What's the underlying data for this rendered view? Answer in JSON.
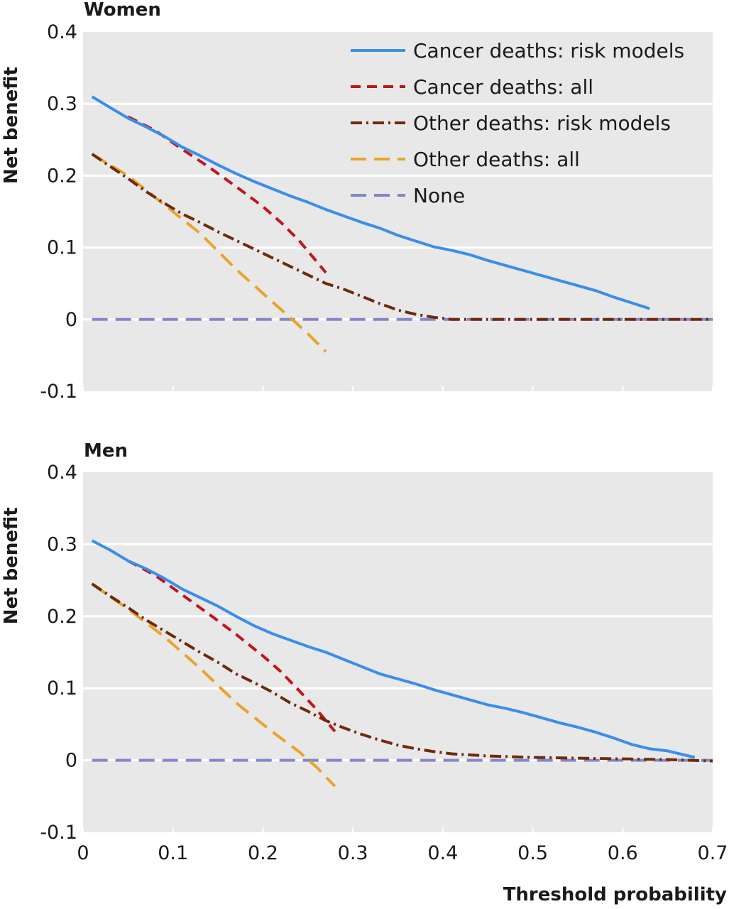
{
  "chart_data": [
    {
      "type": "line",
      "title": "Women",
      "xlabel": "",
      "ylabel": "Net benefit",
      "xlim": [
        0,
        0.7
      ],
      "ylim": [
        -0.1,
        0.4
      ],
      "x_ticks": [
        0,
        0.1,
        0.2,
        0.3,
        0.4,
        0.5,
        0.6,
        0.7
      ],
      "x_tick_labels": [
        "",
        "",
        "",
        "",
        "",
        "",
        "",
        ""
      ],
      "y_ticks": [
        -0.1,
        0,
        0.1,
        0.2,
        0.3,
        0.4
      ],
      "y_tick_labels": [
        "-0.1",
        "0",
        "0.1",
        "0.2",
        "0.3",
        "0.4"
      ],
      "grid": "horizontal",
      "background": "#e8e8e8",
      "legend_position": "top-right",
      "series": [
        {
          "name": "Cancer deaths: risk models",
          "color": "#3b8ee8",
          "style": "solid",
          "points": [
            [
              0.01,
              0.31
            ],
            [
              0.03,
              0.295
            ],
            [
              0.05,
              0.28
            ],
            [
              0.07,
              0.268
            ],
            [
              0.09,
              0.255
            ],
            [
              0.11,
              0.24
            ],
            [
              0.13,
              0.228
            ],
            [
              0.15,
              0.215
            ],
            [
              0.17,
              0.203
            ],
            [
              0.19,
              0.192
            ],
            [
              0.21,
              0.182
            ],
            [
              0.23,
              0.172
            ],
            [
              0.25,
              0.163
            ],
            [
              0.27,
              0.153
            ],
            [
              0.29,
              0.144
            ],
            [
              0.31,
              0.135
            ],
            [
              0.33,
              0.127
            ],
            [
              0.35,
              0.117
            ],
            [
              0.37,
              0.109
            ],
            [
              0.39,
              0.101
            ],
            [
              0.41,
              0.096
            ],
            [
              0.43,
              0.09
            ],
            [
              0.45,
              0.082
            ],
            [
              0.47,
              0.075
            ],
            [
              0.49,
              0.068
            ],
            [
              0.51,
              0.061
            ],
            [
              0.53,
              0.054
            ],
            [
              0.55,
              0.047
            ],
            [
              0.57,
              0.04
            ],
            [
              0.59,
              0.031
            ],
            [
              0.61,
              0.023
            ],
            [
              0.63,
              0.015
            ]
          ]
        },
        {
          "name": "Cancer deaths: all",
          "color": "#c0151b",
          "style": "dashed",
          "points": [
            [
              0.05,
              0.282
            ],
            [
              0.08,
              0.263
            ],
            [
              0.11,
              0.237
            ],
            [
              0.14,
              0.212
            ],
            [
              0.17,
              0.185
            ],
            [
              0.2,
              0.157
            ],
            [
              0.22,
              0.135
            ],
            [
              0.24,
              0.11
            ],
            [
              0.26,
              0.08
            ],
            [
              0.27,
              0.065
            ]
          ]
        },
        {
          "name": "Other deaths: risk models",
          "color": "#6e2a0c",
          "style": "dashdot",
          "points": [
            [
              0.01,
              0.23
            ],
            [
              0.03,
              0.213
            ],
            [
              0.05,
              0.196
            ],
            [
              0.07,
              0.178
            ],
            [
              0.09,
              0.162
            ],
            [
              0.11,
              0.147
            ],
            [
              0.13,
              0.135
            ],
            [
              0.15,
              0.122
            ],
            [
              0.17,
              0.11
            ],
            [
              0.19,
              0.098
            ],
            [
              0.21,
              0.086
            ],
            [
              0.23,
              0.074
            ],
            [
              0.25,
              0.062
            ],
            [
              0.27,
              0.05
            ],
            [
              0.29,
              0.042
            ],
            [
              0.31,
              0.032
            ],
            [
              0.33,
              0.022
            ],
            [
              0.35,
              0.013
            ],
            [
              0.37,
              0.007
            ],
            [
              0.39,
              0.003
            ],
            [
              0.41,
              0.0
            ],
            [
              0.5,
              0.0
            ],
            [
              0.6,
              0.0
            ],
            [
              0.7,
              0.0
            ]
          ]
        },
        {
          "name": "Other deaths: all",
          "color": "#e8a42a",
          "style": "longdash",
          "points": [
            [
              0.01,
              0.23
            ],
            [
              0.05,
              0.2
            ],
            [
              0.09,
              0.16
            ],
            [
              0.13,
              0.12
            ],
            [
              0.17,
              0.07
            ],
            [
              0.21,
              0.025
            ],
            [
              0.23,
              0.003
            ],
            [
              0.25,
              -0.02
            ],
            [
              0.27,
              -0.045
            ]
          ]
        },
        {
          "name": "None",
          "color": "#8585c8",
          "style": "longdash",
          "points": [
            [
              0.01,
              0.0
            ],
            [
              0.7,
              0.0
            ]
          ]
        }
      ]
    },
    {
      "type": "line",
      "title": "Men",
      "xlabel": "Threshold probability",
      "ylabel": "Net benefit",
      "xlim": [
        0,
        0.7
      ],
      "ylim": [
        -0.1,
        0.4
      ],
      "x_ticks": [
        0,
        0.1,
        0.2,
        0.3,
        0.4,
        0.5,
        0.6,
        0.7
      ],
      "x_tick_labels": [
        "0",
        "0.1",
        "0.2",
        "0.3",
        "0.4",
        "0.5",
        "0.6",
        "0.7"
      ],
      "y_ticks": [
        -0.1,
        0,
        0.1,
        0.2,
        0.3,
        0.4
      ],
      "y_tick_labels": [
        "-0.1",
        "0",
        "0.1",
        "0.2",
        "0.3",
        "0.4"
      ],
      "grid": "horizontal",
      "background": "#e8e8e8",
      "series": [
        {
          "name": "Cancer deaths: risk models",
          "color": "#3b8ee8",
          "style": "solid",
          "points": [
            [
              0.01,
              0.305
            ],
            [
              0.03,
              0.292
            ],
            [
              0.05,
              0.277
            ],
            [
              0.07,
              0.266
            ],
            [
              0.09,
              0.253
            ],
            [
              0.11,
              0.238
            ],
            [
              0.13,
              0.226
            ],
            [
              0.15,
              0.214
            ],
            [
              0.17,
              0.2
            ],
            [
              0.19,
              0.187
            ],
            [
              0.21,
              0.176
            ],
            [
              0.23,
              0.167
            ],
            [
              0.25,
              0.158
            ],
            [
              0.27,
              0.15
            ],
            [
              0.29,
              0.14
            ],
            [
              0.31,
              0.13
            ],
            [
              0.33,
              0.12
            ],
            [
              0.35,
              0.113
            ],
            [
              0.37,
              0.106
            ],
            [
              0.39,
              0.098
            ],
            [
              0.41,
              0.091
            ],
            [
              0.43,
              0.084
            ],
            [
              0.45,
              0.077
            ],
            [
              0.47,
              0.072
            ],
            [
              0.49,
              0.066
            ],
            [
              0.51,
              0.059
            ],
            [
              0.53,
              0.052
            ],
            [
              0.55,
              0.046
            ],
            [
              0.57,
              0.039
            ],
            [
              0.59,
              0.031
            ],
            [
              0.61,
              0.022
            ],
            [
              0.63,
              0.016
            ],
            [
              0.65,
              0.013
            ],
            [
              0.67,
              0.007
            ],
            [
              0.68,
              0.004
            ]
          ]
        },
        {
          "name": "Cancer deaths: all",
          "color": "#c0151b",
          "style": "dashed",
          "points": [
            [
              0.05,
              0.277
            ],
            [
              0.08,
              0.257
            ],
            [
              0.11,
              0.23
            ],
            [
              0.14,
              0.203
            ],
            [
              0.17,
              0.175
            ],
            [
              0.2,
              0.145
            ],
            [
              0.22,
              0.123
            ],
            [
              0.24,
              0.097
            ],
            [
              0.26,
              0.07
            ],
            [
              0.28,
              0.04
            ]
          ]
        },
        {
          "name": "Other deaths: risk models",
          "color": "#6e2a0c",
          "style": "dashdot",
          "points": [
            [
              0.01,
              0.245
            ],
            [
              0.03,
              0.228
            ],
            [
              0.05,
              0.212
            ],
            [
              0.07,
              0.195
            ],
            [
              0.09,
              0.18
            ],
            [
              0.11,
              0.165
            ],
            [
              0.13,
              0.15
            ],
            [
              0.15,
              0.136
            ],
            [
              0.17,
              0.12
            ],
            [
              0.19,
              0.108
            ],
            [
              0.21,
              0.095
            ],
            [
              0.23,
              0.08
            ],
            [
              0.25,
              0.068
            ],
            [
              0.27,
              0.055
            ],
            [
              0.29,
              0.045
            ],
            [
              0.31,
              0.036
            ],
            [
              0.33,
              0.028
            ],
            [
              0.35,
              0.021
            ],
            [
              0.37,
              0.016
            ],
            [
              0.39,
              0.012
            ],
            [
              0.41,
              0.009
            ],
            [
              0.45,
              0.006
            ],
            [
              0.5,
              0.004
            ],
            [
              0.55,
              0.003
            ],
            [
              0.6,
              0.002
            ],
            [
              0.65,
              0.001
            ],
            [
              0.7,
              -0.001
            ]
          ]
        },
        {
          "name": "Other deaths: all",
          "color": "#e8a42a",
          "style": "longdash",
          "points": [
            [
              0.01,
              0.245
            ],
            [
              0.05,
              0.21
            ],
            [
              0.09,
              0.172
            ],
            [
              0.13,
              0.128
            ],
            [
              0.17,
              0.08
            ],
            [
              0.21,
              0.04
            ],
            [
              0.24,
              0.012
            ],
            [
              0.26,
              -0.01
            ],
            [
              0.28,
              -0.036
            ]
          ]
        },
        {
          "name": "None",
          "color": "#8585c8",
          "style": "longdash",
          "points": [
            [
              0.01,
              0.0
            ],
            [
              0.7,
              0.0
            ]
          ]
        }
      ]
    }
  ]
}
